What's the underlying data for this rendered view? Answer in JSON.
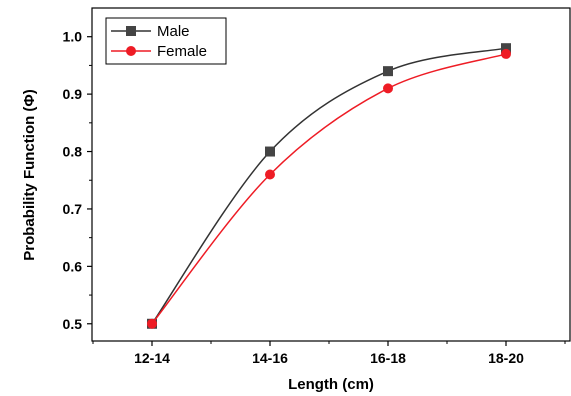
{
  "chart_data": {
    "type": "line",
    "categories": [
      "12-14",
      "14-16",
      "16-18",
      "18-20"
    ],
    "series": [
      {
        "name": "Male",
        "values": [
          0.5,
          0.8,
          0.94,
          0.98
        ],
        "color": "#333333",
        "marker": "square"
      },
      {
        "name": "Female",
        "values": [
          0.5,
          0.76,
          0.91,
          0.97
        ],
        "color": "#ee1c25",
        "marker": "circle"
      }
    ],
    "xlabel": "Length (cm)",
    "ylabel": "Probability Function (Φ)",
    "ylim": [
      0.47,
      1.05
    ],
    "yticks": [
      "0.5",
      "0.6",
      "0.7",
      "0.8",
      "0.9",
      "1.0"
    ],
    "smooth": true,
    "grid": false,
    "legend_position": "top-left"
  }
}
